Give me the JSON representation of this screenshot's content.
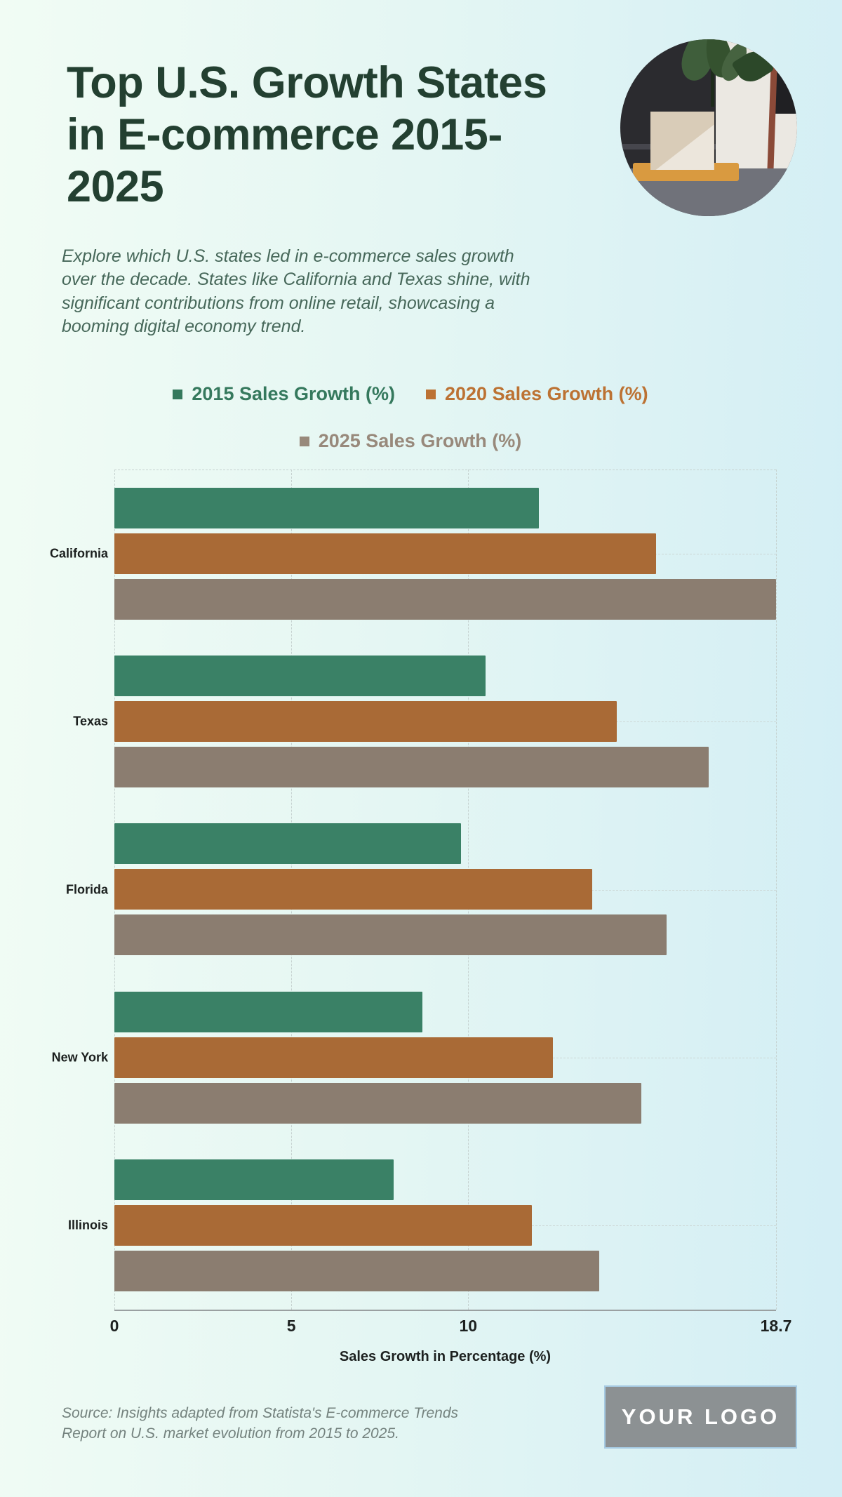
{
  "header": {
    "title": "Top U.S. Growth States in E-commerce 2015-2025",
    "title_lines": [
      "Top U.S. Growth States",
      "in E-commerce 2015-",
      "2025"
    ],
    "title_color": "#234031",
    "description_lines": [
      "Explore which U.S. states led in e-commerce sales growth",
      "over the decade. States like California and Texas shine, with",
      "significant contributions from online retail, showcasing a",
      "booming digital economy trend."
    ]
  },
  "photo": {
    "name": "package-at-door-photo"
  },
  "chart_data": {
    "type": "bar",
    "orientation": "horizontal",
    "categories": [
      "California",
      "Texas",
      "Florida",
      "New York",
      "Illinois"
    ],
    "series": [
      {
        "name": "2015 Sales Growth (%)",
        "color": "#3A8166",
        "legend_color": "#35795D",
        "values": [
          12.0,
          10.5,
          9.8,
          8.7,
          7.9
        ]
      },
      {
        "name": "2020 Sales Growth (%)",
        "color": "#A96A36",
        "legend_color": "#BC7233",
        "values": [
          15.3,
          14.2,
          13.5,
          12.4,
          11.8
        ]
      },
      {
        "name": "2025 Sales Growth (%)",
        "color": "#8B7D70",
        "legend_color": "#98897B",
        "values": [
          18.7,
          16.8,
          15.6,
          14.9,
          13.7
        ]
      }
    ],
    "xlabel": "Sales Growth in Percentage (%)",
    "xlim": [
      0,
      18.7
    ],
    "xticks": [
      0,
      5,
      10,
      18.7
    ],
    "xtick_labels": [
      "0",
      "5",
      "10",
      "18.7"
    ],
    "grid": true,
    "grid_style": "dashed",
    "legend_position": "top-center"
  },
  "footer": {
    "source_lines": [
      "Source: Insights adapted from Statista's E-commerce Trends",
      "Report on U.S. market evolution from 2015 to 2025."
    ],
    "logo_text": "YOUR LOGO"
  }
}
